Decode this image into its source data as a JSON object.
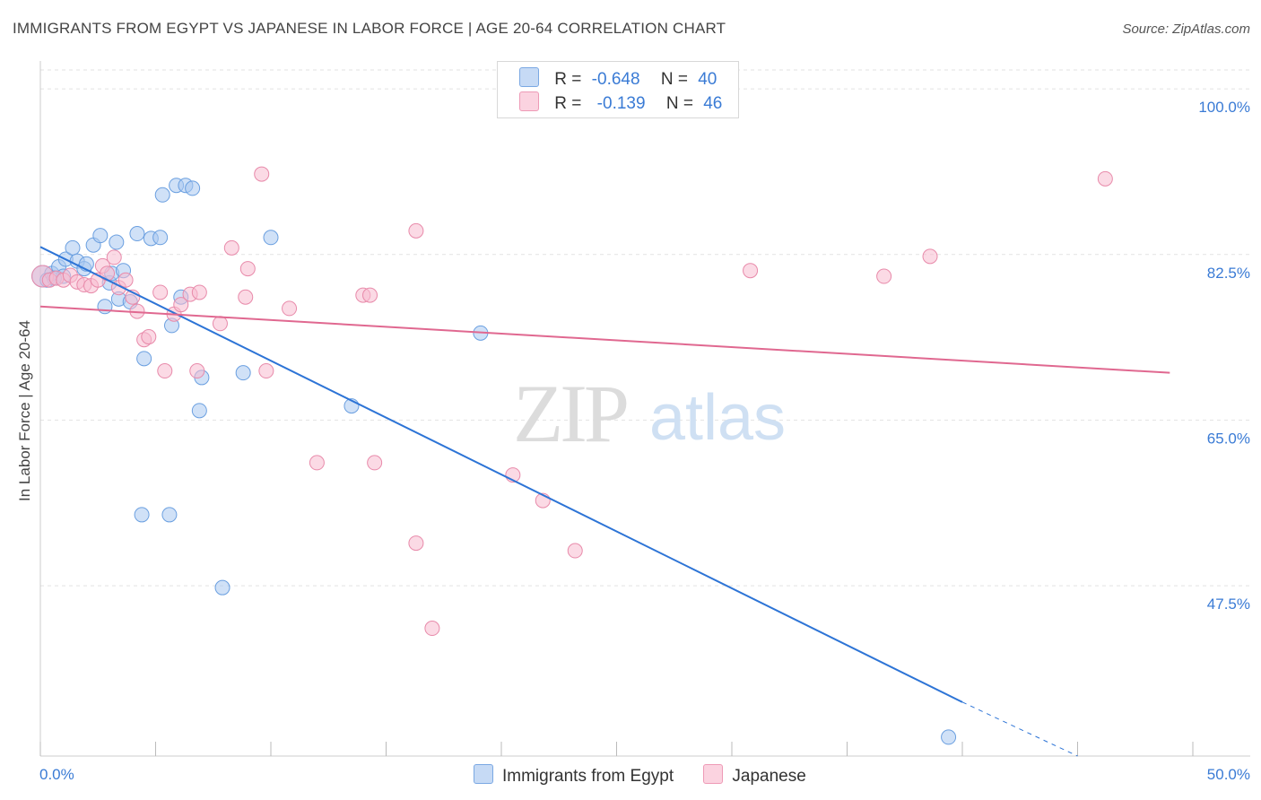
{
  "title": "IMMIGRANTS FROM EGYPT VS JAPANESE IN LABOR FORCE | AGE 20-64 CORRELATION CHART",
  "source": "Source: ZipAtlas.com",
  "watermark": {
    "zip": "ZIP",
    "atlas": "atlas"
  },
  "legend_stats": [
    {
      "r_label": "R =",
      "r_value": "-0.648",
      "n_label": "N =",
      "n_value": "40",
      "color": "#a9c8f0"
    },
    {
      "r_label": "R =",
      "r_value": "-0.139",
      "n_label": "N =",
      "n_value": "46",
      "color": "#f7bcd0"
    }
  ],
  "chart_data": {
    "type": "scatter",
    "ylabel": "In Labor Force | Age 20-64",
    "xlim": [
      0,
      50
    ],
    "ylim": [
      29.5,
      102
    ],
    "x_tick_labels": [
      {
        "x": 0,
        "label": "0.0%"
      },
      {
        "x": 50,
        "label": "50.0%"
      }
    ],
    "y_tick_labels": [
      {
        "y": 100,
        "label": "100.0%"
      },
      {
        "y": 82.5,
        "label": "82.5%"
      },
      {
        "y": 65,
        "label": "65.0%"
      },
      {
        "y": 47.5,
        "label": "47.5%"
      }
    ],
    "x_minor_ticks": [
      0,
      5,
      10,
      15,
      20,
      25,
      30,
      35,
      40,
      45,
      50
    ],
    "grid": true,
    "legend_position": "bottom",
    "series": [
      {
        "name": "Immigrants from Egypt",
        "color": "#a9c8f0",
        "stroke": "#6a9fe0",
        "line_color": "#2d74d6",
        "trend": {
          "x0": 0,
          "y0": 83.3,
          "x1": 40,
          "y1": 35.2,
          "dash_to_x": 45,
          "dash_to_y": 29.5
        },
        "points": [
          [
            0.1,
            80.2
          ],
          [
            0.3,
            79.8
          ],
          [
            0.5,
            80.5
          ],
          [
            0.8,
            81.2
          ],
          [
            1.1,
            82.0
          ],
          [
            1.4,
            83.2
          ],
          [
            1.6,
            81.8
          ],
          [
            1.9,
            81.0
          ],
          [
            2.3,
            83.5
          ],
          [
            2.6,
            84.5
          ],
          [
            2.8,
            77.0
          ],
          [
            3.0,
            79.5
          ],
          [
            3.1,
            80.5
          ],
          [
            3.3,
            83.8
          ],
          [
            3.4,
            77.8
          ],
          [
            3.6,
            80.8
          ],
          [
            3.9,
            77.5
          ],
          [
            4.2,
            84.7
          ],
          [
            4.5,
            71.5
          ],
          [
            4.8,
            84.2
          ],
          [
            5.2,
            84.3
          ],
          [
            5.3,
            88.8
          ],
          [
            5.7,
            75.0
          ],
          [
            5.9,
            89.8
          ],
          [
            6.1,
            78.0
          ],
          [
            6.3,
            89.8
          ],
          [
            6.6,
            89.5
          ],
          [
            6.9,
            66.0
          ],
          [
            7.0,
            69.5
          ],
          [
            8.8,
            70.0
          ],
          [
            10.0,
            84.3
          ],
          [
            13.5,
            66.5
          ],
          [
            19.1,
            74.2
          ],
          [
            4.4,
            55.0
          ],
          [
            5.6,
            55.0
          ],
          [
            7.9,
            47.3
          ],
          [
            39.4,
            31.5
          ],
          [
            1.0,
            80.2
          ],
          [
            0.6,
            80.0
          ],
          [
            2.0,
            81.5
          ]
        ]
      },
      {
        "name": "Japanese",
        "color": "#f7bcd0",
        "stroke": "#e88aaa",
        "line_color": "#e06890",
        "trend": {
          "x0": 0,
          "y0": 77.0,
          "x1": 49,
          "y1": 70.0
        },
        "points": [
          [
            0.1,
            80.2
          ],
          [
            0.4,
            79.8
          ],
          [
            0.7,
            80.0
          ],
          [
            1.0,
            79.8
          ],
          [
            1.3,
            80.3
          ],
          [
            1.6,
            79.6
          ],
          [
            1.9,
            79.3
          ],
          [
            2.2,
            79.2
          ],
          [
            2.5,
            79.8
          ],
          [
            2.7,
            81.3
          ],
          [
            2.9,
            80.5
          ],
          [
            3.2,
            82.2
          ],
          [
            3.4,
            79.0
          ],
          [
            3.7,
            79.8
          ],
          [
            4.0,
            78.0
          ],
          [
            4.2,
            76.5
          ],
          [
            4.5,
            73.5
          ],
          [
            4.7,
            73.8
          ],
          [
            5.2,
            78.5
          ],
          [
            5.4,
            70.2
          ],
          [
            5.8,
            76.2
          ],
          [
            6.1,
            77.2
          ],
          [
            6.5,
            78.3
          ],
          [
            6.8,
            70.2
          ],
          [
            6.9,
            78.5
          ],
          [
            7.8,
            75.2
          ],
          [
            8.3,
            83.2
          ],
          [
            8.9,
            78.0
          ],
          [
            9.0,
            81.0
          ],
          [
            9.6,
            91.0
          ],
          [
            9.8,
            70.2
          ],
          [
            10.8,
            76.8
          ],
          [
            12.0,
            60.5
          ],
          [
            14.0,
            78.2
          ],
          [
            14.3,
            78.2
          ],
          [
            14.5,
            60.5
          ],
          [
            16.3,
            85.0
          ],
          [
            16.3,
            52.0
          ],
          [
            17.0,
            43.0
          ],
          [
            20.5,
            59.2
          ],
          [
            21.8,
            56.5
          ],
          [
            23.2,
            51.2
          ],
          [
            30.8,
            80.8
          ],
          [
            36.6,
            80.2
          ],
          [
            38.6,
            82.3
          ],
          [
            46.2,
            90.5
          ]
        ]
      }
    ]
  }
}
